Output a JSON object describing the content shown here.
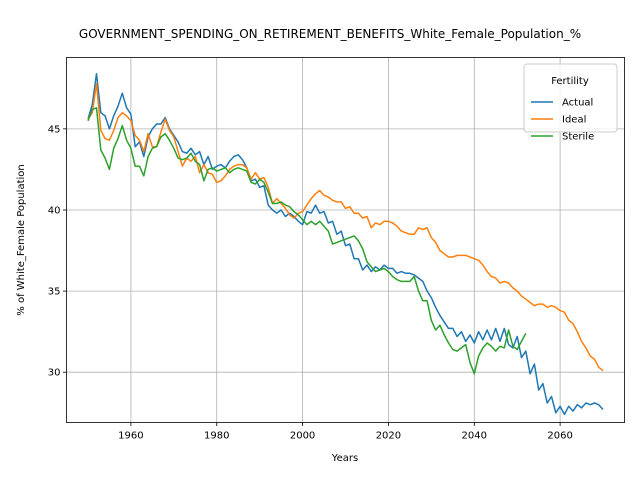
{
  "chart_data": {
    "type": "line",
    "title": "GOVERNMENT_SPENDING_ON_RETIREMENT_BENEFITS_White_Female_Population_%",
    "xlabel": "Years",
    "ylabel": "% of White_Female Population",
    "xlim": [
      1945,
      2075
    ],
    "ylim": [
      26.9,
      49.4
    ],
    "xticks": [
      1960,
      1980,
      2000,
      2020,
      2040,
      2060
    ],
    "yticks": [
      30,
      35,
      40,
      45
    ],
    "grid": true,
    "legend": {
      "title": "Fertility",
      "placement": "top-right"
    },
    "series": [
      {
        "name": "Actual",
        "color": "#1f77b4",
        "x": [
          1950,
          1951,
          1952,
          1953,
          1954,
          1955,
          1956,
          1957,
          1958,
          1959,
          1960,
          1961,
          1962,
          1963,
          1964,
          1965,
          1966,
          1967,
          1968,
          1969,
          1970,
          1971,
          1972,
          1973,
          1974,
          1975,
          1976,
          1977,
          1978,
          1979,
          1980,
          1981,
          1982,
          1983,
          1984,
          1985,
          1986,
          1987,
          1988,
          1989,
          1990,
          1991,
          1992,
          1993,
          1994,
          1995,
          1996,
          1997,
          1998,
          1999,
          2000,
          2001,
          2002,
          2003,
          2004,
          2005,
          2006,
          2007,
          2008,
          2009,
          2010,
          2011,
          2012,
          2013,
          2014,
          2015,
          2016,
          2017,
          2018,
          2019,
          2020,
          2021,
          2022,
          2023,
          2024,
          2025,
          2026,
          2027,
          2028,
          2029,
          2030,
          2031,
          2032,
          2033,
          2034,
          2035,
          2036,
          2037,
          2038,
          2039,
          2040,
          2041,
          2042,
          2043,
          2044,
          2045,
          2046,
          2047,
          2048,
          2049,
          2050,
          2051,
          2052,
          2053,
          2054,
          2055,
          2056,
          2057,
          2058,
          2059,
          2060,
          2061,
          2062,
          2063,
          2064,
          2065,
          2066,
          2067,
          2068,
          2069,
          2070
        ],
        "y": [
          45.6,
          46.5,
          48.4,
          46.0,
          45.8,
          45.0,
          45.8,
          46.4,
          47.2,
          46.3,
          45.9,
          43.9,
          44.2,
          43.3,
          44.5,
          45.0,
          45.3,
          45.3,
          45.7,
          45.0,
          44.6,
          44.2,
          43.6,
          43.5,
          43.8,
          43.4,
          43.6,
          42.8,
          43.3,
          42.5,
          42.7,
          42.8,
          42.6,
          43.0,
          43.3,
          43.4,
          43.1,
          42.6,
          41.8,
          41.9,
          41.4,
          41.5,
          40.3,
          40.0,
          39.8,
          40.0,
          39.6,
          39.8,
          39.6,
          39.3,
          39.1,
          39.9,
          39.8,
          40.3,
          39.8,
          39.9,
          39.2,
          39.3,
          38.5,
          38.7,
          37.8,
          37.9,
          37.0,
          37.0,
          36.3,
          36.6,
          36.2,
          36.5,
          36.3,
          36.6,
          36.4,
          36.4,
          36.1,
          36.2,
          36.1,
          36.1,
          36.0,
          35.8,
          35.6,
          35.0,
          34.6,
          34.0,
          33.5,
          33.1,
          32.7,
          32.7,
          32.2,
          32.5,
          31.9,
          32.3,
          31.8,
          32.5,
          32.0,
          32.6,
          32.0,
          32.7,
          31.9,
          32.7,
          31.7,
          31.5,
          32.2,
          30.9,
          31.3,
          29.9,
          30.5,
          28.9,
          29.3,
          28.1,
          28.5,
          27.5,
          27.9,
          27.4,
          27.9,
          27.6,
          28.0,
          27.8,
          28.1,
          28.0,
          28.1,
          28.0,
          27.7
        ]
      },
      {
        "name": "Ideal",
        "color": "#ff7f0e",
        "x": [
          1950,
          1951,
          1952,
          1953,
          1954,
          1955,
          1956,
          1957,
          1958,
          1959,
          1960,
          1961,
          1962,
          1963,
          1964,
          1965,
          1966,
          1967,
          1968,
          1969,
          1970,
          1971,
          1972,
          1973,
          1974,
          1975,
          1976,
          1977,
          1978,
          1979,
          1980,
          1981,
          1982,
          1983,
          1984,
          1985,
          1986,
          1987,
          1988,
          1989,
          1990,
          1991,
          1992,
          1993,
          1994,
          1995,
          1996,
          1997,
          1998,
          1999,
          2000,
          2001,
          2002,
          2003,
          2004,
          2005,
          2006,
          2007,
          2008,
          2009,
          2010,
          2011,
          2012,
          2013,
          2014,
          2015,
          2016,
          2017,
          2018,
          2019,
          2020,
          2021,
          2022,
          2023,
          2024,
          2025,
          2026,
          2027,
          2028,
          2029,
          2030,
          2031,
          2032,
          2033,
          2034,
          2035,
          2036,
          2037,
          2038,
          2039,
          2040,
          2041,
          2042,
          2043,
          2044,
          2045,
          2046,
          2047,
          2048,
          2049,
          2050,
          2051,
          2052,
          2053,
          2054,
          2055,
          2056,
          2057,
          2058,
          2059,
          2060,
          2061,
          2062,
          2063,
          2064,
          2065,
          2066,
          2067,
          2068,
          2069,
          2070
        ],
        "y": [
          45.6,
          46.0,
          47.8,
          44.9,
          44.4,
          44.3,
          44.9,
          45.7,
          46.0,
          45.8,
          45.5,
          44.6,
          44.3,
          43.6,
          44.7,
          43.9,
          43.9,
          44.8,
          45.6,
          44.9,
          44.5,
          43.6,
          42.7,
          43.2,
          43.0,
          43.3,
          42.3,
          42.8,
          42.3,
          42.2,
          41.7,
          41.8,
          42.1,
          42.5,
          42.7,
          42.8,
          42.8,
          42.6,
          41.9,
          42.3,
          41.9,
          42.0,
          41.4,
          40.4,
          40.7,
          40.4,
          40.1,
          39.7,
          39.5,
          39.8,
          39.9,
          40.3,
          40.7,
          41.0,
          41.2,
          40.9,
          40.8,
          40.6,
          40.5,
          40.5,
          40.1,
          40.2,
          39.8,
          39.8,
          39.5,
          39.6,
          38.9,
          39.2,
          39.1,
          39.3,
          39.3,
          39.2,
          39.0,
          38.7,
          38.6,
          38.5,
          38.5,
          38.9,
          38.8,
          38.9,
          38.3,
          38.0,
          37.5,
          37.3,
          37.1,
          37.1,
          37.2,
          37.2,
          37.2,
          37.1,
          37.0,
          36.9,
          36.6,
          36.2,
          35.9,
          35.8,
          35.5,
          35.6,
          35.5,
          35.2,
          35.0,
          34.7,
          34.5,
          34.3,
          34.1,
          34.2,
          34.2,
          34.0,
          34.1,
          34.0,
          33.8,
          33.7,
          33.2,
          33.0,
          32.5,
          31.9,
          31.5,
          31.0,
          30.8,
          30.3,
          30.1
        ]
      },
      {
        "name": "Sterile",
        "color": "#2ca02c",
        "x": [
          1950,
          1951,
          1952,
          1953,
          1954,
          1955,
          1956,
          1957,
          1958,
          1959,
          1960,
          1961,
          1962,
          1963,
          1964,
          1965,
          1966,
          1967,
          1968,
          1969,
          1970,
          1971,
          1972,
          1973,
          1974,
          1975,
          1976,
          1977,
          1978,
          1979,
          1980,
          1981,
          1982,
          1983,
          1984,
          1985,
          1986,
          1987,
          1988,
          1989,
          1990,
          1991,
          1992,
          1993,
          1994,
          1995,
          1996,
          1997,
          1998,
          1999,
          2000,
          2001,
          2002,
          2003,
          2004,
          2005,
          2006,
          2007,
          2008,
          2009,
          2010,
          2011,
          2012,
          2013,
          2014,
          2015,
          2016,
          2017,
          2018,
          2019,
          2020,
          2021,
          2022,
          2023,
          2024,
          2025,
          2026,
          2027,
          2028,
          2029,
          2030,
          2031,
          2032,
          2033,
          2034,
          2035,
          2036,
          2037,
          2038,
          2039,
          2040,
          2041,
          2042,
          2043,
          2044,
          2045,
          2046,
          2047,
          2048,
          2049,
          2050,
          2051,
          2052
        ],
        "y": [
          45.5,
          46.2,
          46.3,
          43.7,
          43.2,
          42.5,
          43.8,
          44.4,
          45.2,
          44.3,
          43.8,
          42.7,
          42.7,
          42.1,
          43.3,
          43.8,
          43.9,
          44.5,
          44.7,
          44.3,
          43.8,
          43.2,
          43.1,
          43.2,
          43.5,
          43.0,
          42.8,
          41.8,
          42.5,
          42.6,
          42.4,
          42.5,
          42.6,
          42.3,
          42.5,
          42.6,
          42.5,
          42.4,
          41.7,
          41.6,
          41.9,
          41.7,
          41.1,
          40.4,
          40.4,
          40.5,
          40.3,
          40.2,
          39.9,
          39.7,
          39.4,
          39.1,
          39.3,
          39.1,
          39.3,
          39.0,
          38.7,
          37.9,
          38.0,
          38.1,
          38.2,
          38.3,
          38.4,
          38.1,
          37.6,
          36.8,
          36.5,
          36.2,
          36.3,
          36.4,
          36.2,
          35.9,
          35.7,
          35.6,
          35.6,
          35.6,
          35.9,
          35.0,
          34.4,
          34.4,
          33.2,
          32.6,
          32.9,
          32.3,
          31.8,
          31.4,
          31.3,
          31.5,
          31.7,
          30.6,
          29.9,
          31.0,
          31.5,
          31.8,
          31.6,
          31.3,
          31.6,
          31.5,
          32.6,
          31.6,
          31.4,
          31.9,
          32.4
        ]
      }
    ]
  }
}
